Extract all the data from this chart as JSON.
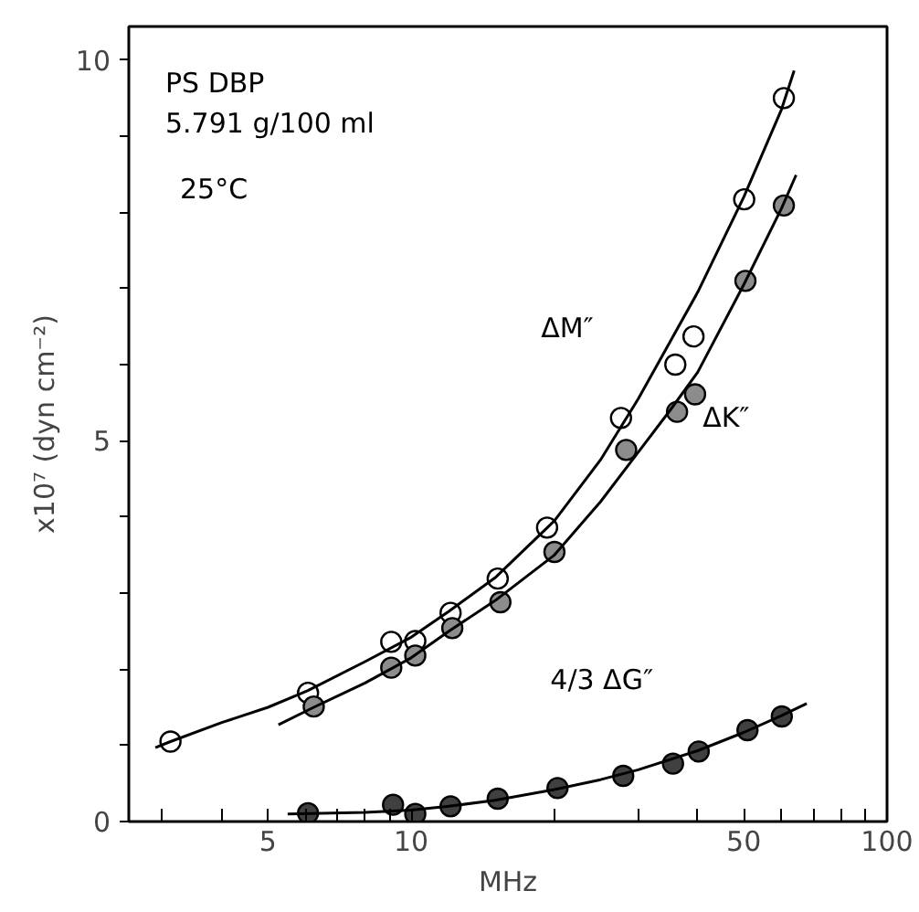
{
  "chart_data": {
    "type": "scatter",
    "xlabel": "MHz",
    "ylabel": "x10⁷ (dyn cm⁻²)",
    "annotations": [
      "PS DBP",
      "5.791 g/100 ml",
      "25°C"
    ],
    "log": "x",
    "grid": false,
    "xlim": [
      2.55,
      100
    ],
    "ylim": [
      0,
      10.44
    ],
    "xticks": [
      {
        "value": 3,
        "label": null
      },
      {
        "value": 4,
        "label": null
      },
      5,
      {
        "value": 6,
        "label": null
      },
      {
        "value": 7,
        "label": null
      },
      {
        "value": 8,
        "label": null
      },
      {
        "value": 9,
        "label": null
      },
      10,
      {
        "value": 20,
        "label": null
      },
      {
        "value": 30,
        "label": null
      },
      {
        "value": 40,
        "label": null
      },
      50,
      {
        "value": 60,
        "label": null
      },
      {
        "value": 70,
        "label": null
      },
      {
        "value": 80,
        "label": null
      },
      {
        "value": 90,
        "label": null
      },
      100
    ],
    "yticks": [
      0,
      {
        "value": 1,
        "label": null
      },
      {
        "value": 2,
        "label": null
      },
      {
        "value": 3,
        "label": null
      },
      {
        "value": 4,
        "label": null
      },
      5,
      {
        "value": 6,
        "label": null
      },
      {
        "value": 7,
        "label": null
      },
      {
        "value": 8,
        "label": null
      },
      {
        "value": 9,
        "label": null
      },
      10
    ],
    "series": [
      {
        "name": "ΔM″",
        "marker": "circle",
        "color": "#ffffff",
        "x": [
          3.12,
          6.07,
          9.08,
          10.2,
          12.1,
          15.2,
          19.3,
          27.6,
          35.9,
          39.2,
          50.1,
          60.7
        ],
        "values": [
          1.05,
          1.69,
          2.36,
          2.37,
          2.74,
          3.19,
          3.86,
          5.3,
          6.0,
          6.37,
          8.17,
          9.5
        ]
      },
      {
        "name": "ΔK″",
        "marker": "circle",
        "color": "#8c8c8c",
        "x": [
          6.24,
          9.08,
          10.2,
          12.2,
          15.4,
          20.0,
          28.3,
          36.2,
          39.5,
          50.4,
          60.7
        ],
        "values": [
          1.51,
          2.02,
          2.18,
          2.54,
          2.88,
          3.54,
          4.88,
          5.38,
          5.61,
          7.1,
          8.09
        ]
      },
      {
        "name": "4/3 ΔG″",
        "marker": "circle",
        "color": "#404040",
        "x": [
          6.07,
          9.16,
          10.2,
          12.1,
          15.2,
          20.3,
          27.9,
          35.5,
          40.2,
          50.9,
          60.1
        ],
        "values": [
          0.11,
          0.22,
          0.1,
          0.2,
          0.3,
          0.44,
          0.6,
          0.76,
          0.92,
          1.2,
          1.38
        ]
      },
      {
        "type": "line",
        "color": "#000000",
        "x": [
          2.9,
          3.12,
          4,
          5,
          6.07,
          8,
          10,
          12,
          15,
          20,
          25,
          30,
          35,
          40,
          50,
          60,
          63.8
        ],
        "values": [
          0.97,
          1.05,
          1.3,
          1.5,
          1.72,
          2.1,
          2.42,
          2.76,
          3.2,
          3.95,
          4.75,
          5.55,
          6.3,
          6.95,
          8.2,
          9.35,
          9.86
        ]
      },
      {
        "type": "line",
        "color": "#000000",
        "x": [
          5.26,
          6.24,
          8,
          10,
          12,
          15,
          20,
          25,
          30,
          35,
          40,
          50,
          60,
          64.4
        ],
        "values": [
          1.27,
          1.5,
          1.82,
          2.15,
          2.5,
          2.9,
          3.5,
          4.2,
          4.85,
          5.4,
          5.9,
          7.05,
          8.05,
          8.49
        ]
      },
      {
        "type": "line",
        "color": "#000000",
        "x": [
          5.5,
          8,
          10,
          12,
          15,
          20,
          25,
          30,
          40,
          50,
          60,
          67.8
        ],
        "values": [
          0.1,
          0.12,
          0.15,
          0.2,
          0.28,
          0.42,
          0.55,
          0.68,
          0.93,
          1.17,
          1.39,
          1.55
        ]
      }
    ]
  }
}
